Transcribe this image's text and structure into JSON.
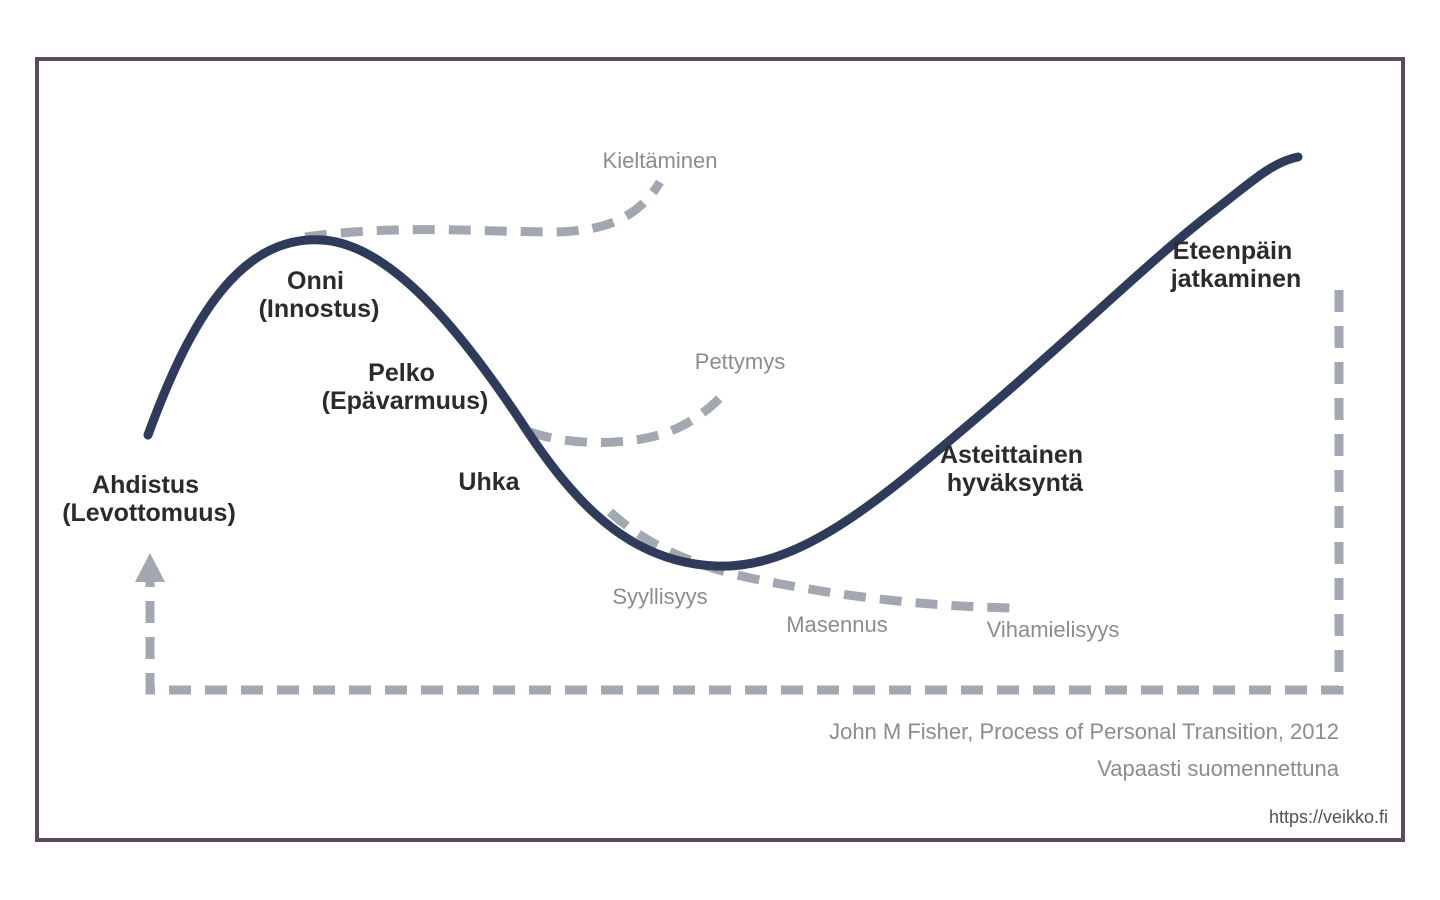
{
  "diagram": {
    "stages": {
      "ahdistus": {
        "line1": "Ahdistus",
        "line2": "(Levottomuus)"
      },
      "onni": {
        "line1": "Onni",
        "line2": "(Innostus)"
      },
      "pelko": {
        "line1": "Pelko",
        "line2": "(Epävarmuus)"
      },
      "uhka": {
        "line1": "Uhka"
      },
      "asteittainen": {
        "line1": "Asteittainen",
        "line2": "hyväksyntä"
      },
      "eteenpain": {
        "line1": "Eteenpäin",
        "line2": "jatkaminen"
      }
    },
    "side_paths": {
      "kieltaminen": "Kieltäminen",
      "pettymys": "Pettymys",
      "syyllisyys": "Syyllisyys",
      "masennus": "Masennus",
      "vihamielisyys": "Vihamielisyys"
    },
    "credit": {
      "source": "John M Fisher, Process of Personal Transition, 2012",
      "note": "Vapaasti suomennettuna"
    },
    "url": "https://veikko.fi"
  },
  "colors": {
    "frame": "#5a4a5e",
    "main_curve": "#2f3b5a",
    "dashed": "#a2a7b2",
    "side_text": "#8a8c90",
    "stage_text": "#2b2b2b"
  }
}
